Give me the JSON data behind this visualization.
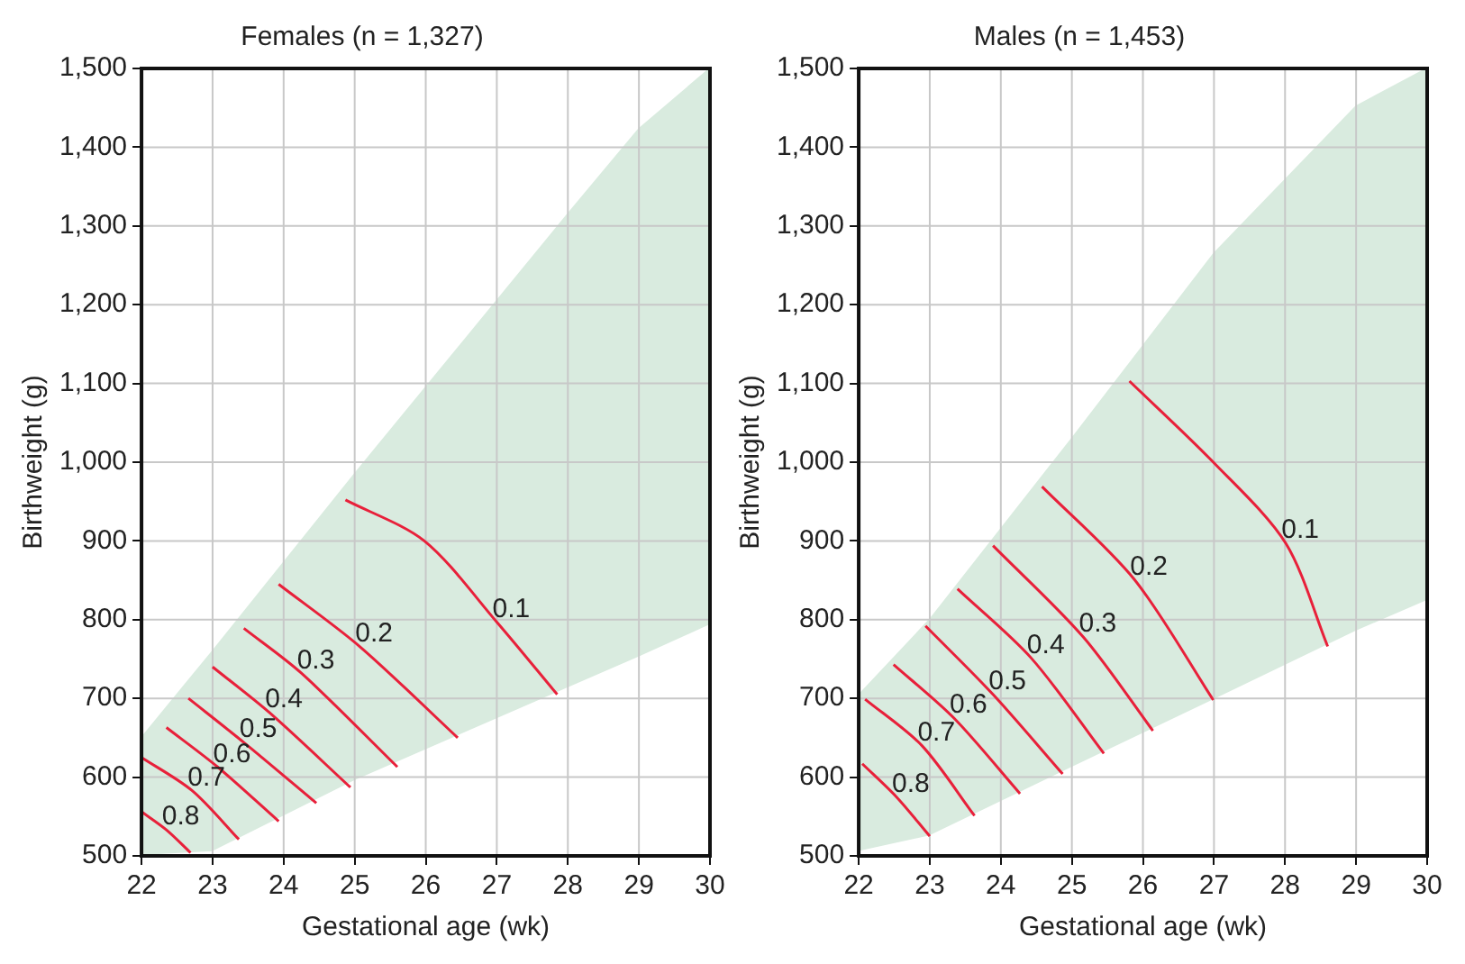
{
  "chart_data": [
    {
      "type": "line",
      "title": "Females (n = 1,327)",
      "xlabel": "Gestational age (wk)",
      "ylabel": "Birthweight (g)",
      "xlim": [
        22,
        30
      ],
      "xticks": [
        22,
        23,
        24,
        25,
        26,
        27,
        28,
        29,
        30
      ],
      "ylim": [
        500,
        1500
      ],
      "yticks": [
        500,
        600,
        700,
        800,
        900,
        {
          "value": 1000,
          "label": "1,000"
        },
        {
          "value": 1100,
          "label": "1,100"
        },
        {
          "value": 1200,
          "label": "1,200"
        },
        {
          "value": 1300,
          "label": "1,300"
        },
        {
          "value": 1400,
          "label": "1,400"
        },
        {
          "value": 1500,
          "label": "1,500"
        }
      ],
      "grid": true,
      "legend": false,
      "marker": "none",
      "line_style": "solid",
      "series": [
        {
          "type": "area",
          "color": "#d9ebdf",
          "x": [
            22,
            23,
            25,
            28,
            29,
            30
          ],
          "values": [
            650,
            760,
            985,
            1315,
            1423,
            1500
          ]
        },
        {
          "type": "area",
          "color": "#ffffff",
          "x": [
            22,
            23,
            25,
            28,
            29,
            30
          ],
          "values": [
            500,
            505,
            595,
            713,
            752,
            793
          ]
        },
        {
          "name": "0.1",
          "color": "#e8203a",
          "x": [
            24.87,
            25.98,
            27.0,
            27.85
          ],
          "values": [
            952,
            900,
            797,
            705
          ]
        },
        {
          "name": "0.2",
          "color": "#e8203a",
          "x": [
            23.93,
            25.07,
            26.45
          ],
          "values": [
            845,
            766,
            650
          ]
        },
        {
          "name": "0.3",
          "color": "#e8203a",
          "x": [
            23.44,
            24.25,
            25.6
          ],
          "values": [
            789,
            732,
            613
          ]
        },
        {
          "name": "0.4",
          "color": "#e8203a",
          "x": [
            23.0,
            23.8,
            24.94
          ],
          "values": [
            740,
            682,
            587
          ]
        },
        {
          "name": "0.5",
          "color": "#e8203a",
          "x": [
            22.66,
            23.44,
            24.46
          ],
          "values": [
            700,
            644,
            567
          ]
        },
        {
          "name": "0.6",
          "color": "#e8203a",
          "x": [
            22.35,
            23.07,
            23.93
          ],
          "values": [
            663,
            613,
            544
          ]
        },
        {
          "name": "0.7",
          "color": "#e8203a",
          "x": [
            22.0,
            22.71,
            23.37
          ],
          "values": [
            625,
            583,
            521
          ]
        },
        {
          "name": "0.8",
          "color": "#e8203a",
          "x": [
            22.0,
            22.35,
            22.69
          ],
          "values": [
            556,
            533,
            504
          ]
        }
      ]
    },
    {
      "type": "line",
      "title": "Males (n = 1,453)",
      "xlabel": "Gestational age (wk)",
      "ylabel": "Birthweight (g)",
      "xlim": [
        22,
        30
      ],
      "xticks": [
        22,
        23,
        24,
        25,
        26,
        27,
        28,
        29,
        30
      ],
      "ylim": [
        500,
        1500
      ],
      "yticks": [
        500,
        600,
        700,
        800,
        900,
        {
          "value": 1000,
          "label": "1,000"
        },
        {
          "value": 1100,
          "label": "1,100"
        },
        {
          "value": 1200,
          "label": "1,200"
        },
        {
          "value": 1300,
          "label": "1,300"
        },
        {
          "value": 1400,
          "label": "1,400"
        },
        {
          "value": 1500,
          "label": "1,500"
        }
      ],
      "grid": true,
      "legend": false,
      "marker": "none",
      "line_style": "solid",
      "series": [
        {
          "type": "area",
          "color": "#d9ebdf",
          "x": [
            22,
            23,
            25,
            27,
            29,
            30
          ],
          "values": [
            704,
            800,
            1030,
            1265,
            1452,
            1500
          ]
        },
        {
          "type": "area",
          "color": "#ffffff",
          "x": [
            22,
            23,
            25,
            27,
            29,
            30
          ],
          "values": [
            505,
            525,
            612,
            698,
            785,
            824
          ]
        },
        {
          "name": "0.1",
          "color": "#e8203a",
          "x": [
            25.81,
            26.99,
            28.01,
            28.6
          ],
          "values": [
            1103,
            1000,
            897,
            766
          ]
        },
        {
          "name": "0.2",
          "color": "#e8203a",
          "x": [
            24.58,
            25.88,
            26.99
          ],
          "values": [
            969,
            851,
            698
          ]
        },
        {
          "name": "0.3",
          "color": "#e8203a",
          "x": [
            23.89,
            25.16,
            26.14
          ],
          "values": [
            894,
            778,
            659
          ]
        },
        {
          "name": "0.4",
          "color": "#e8203a",
          "x": [
            23.39,
            24.43,
            25.45
          ],
          "values": [
            839,
            751,
            630
          ]
        },
        {
          "name": "0.5",
          "color": "#e8203a",
          "x": [
            22.94,
            23.89,
            24.87
          ],
          "values": [
            792,
            705,
            604
          ]
        },
        {
          "name": "0.6",
          "color": "#e8203a",
          "x": [
            22.49,
            23.34,
            24.27
          ],
          "values": [
            743,
            675,
            579
          ]
        },
        {
          "name": "0.7",
          "color": "#e8203a",
          "x": [
            22.09,
            22.89,
            23.63
          ],
          "values": [
            699,
            640,
            551
          ]
        },
        {
          "name": "0.8",
          "color": "#e8203a",
          "x": [
            22.05,
            22.53,
            23.0
          ],
          "values": [
            617,
            575,
            525
          ]
        }
      ]
    }
  ]
}
